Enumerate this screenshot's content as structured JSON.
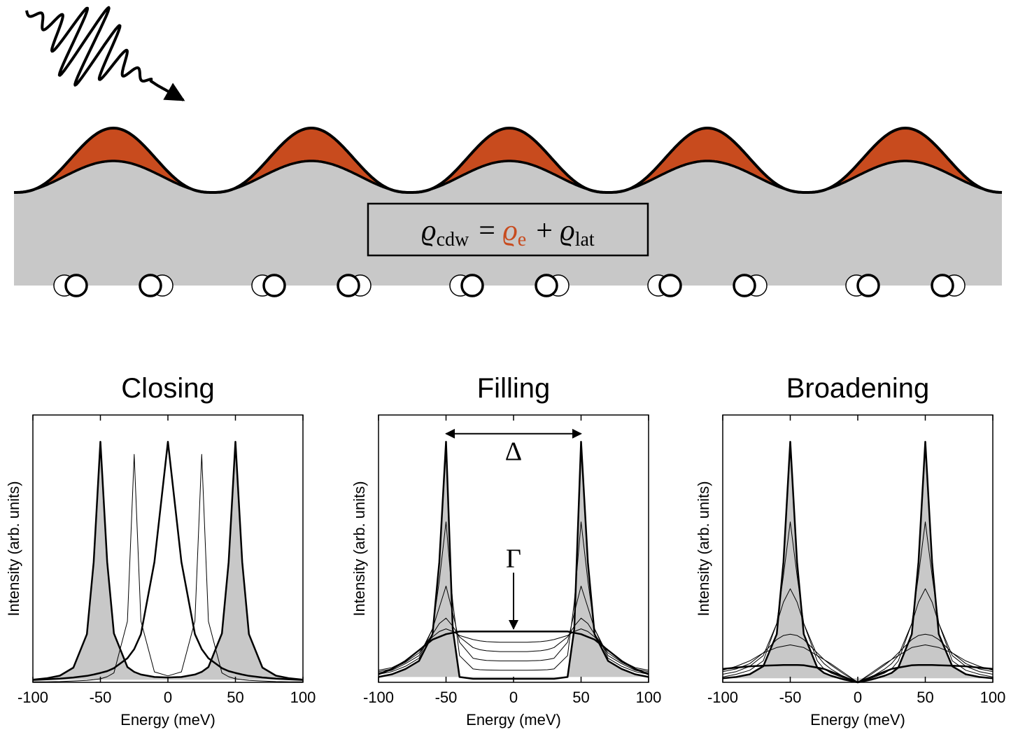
{
  "diagram": {
    "formula": {
      "terms": [
        {
          "symbol": "ϱ",
          "sub": "cdw",
          "color": "#000000"
        },
        {
          "symbol": "ϱ",
          "sub": "e",
          "color": "#c84b1e"
        },
        {
          "symbol": "ϱ",
          "sub": "lat",
          "color": "#000000"
        }
      ],
      "operators": [
        "=",
        "+"
      ]
    }
  },
  "chart_data": [
    {
      "type": "line",
      "title": "Closing",
      "x_label": "Energy (meV)",
      "y_label": "Intensity (arb. units)",
      "x": [
        -100,
        -90,
        -80,
        -70,
        -60,
        -55,
        -50,
        -45,
        -40,
        -30,
        -25,
        -20,
        -10,
        0,
        10,
        20,
        25,
        30,
        40,
        45,
        50,
        55,
        60,
        70,
        80,
        90,
        100
      ],
      "xlim": [
        -100,
        100
      ],
      "ylim": [
        0,
        1
      ],
      "xticks": [
        -100,
        -50,
        0,
        50,
        100
      ],
      "series": [
        {
          "color": "#000000",
          "fill": "#c8c8c8",
          "line_width": 2.5,
          "values": [
            0.01,
            0.015,
            0.025,
            0.055,
            0.18,
            0.45,
            0.9,
            0.45,
            0.183,
            0.057,
            0.039,
            0.029,
            0.02,
            0.018,
            0.02,
            0.029,
            0.039,
            0.057,
            0.183,
            0.45,
            0.9,
            0.45,
            0.18,
            0.055,
            0.025,
            0.015,
            0.01
          ]
        },
        {
          "color": "#000000",
          "line_width": 1,
          "values": [
            0.002,
            0.002,
            0.003,
            0.005,
            0.007,
            0.0096,
            0.013,
            0.021,
            0.035,
            0.228,
            0.853,
            0.229,
            0.039,
            0.024,
            0.039,
            0.229,
            0.853,
            0.228,
            0.035,
            0.021,
            0.013,
            0.0096,
            0.007,
            0.005,
            0.003,
            0.002,
            0.002
          ]
        },
        {
          "color": "#000000",
          "line_width": 2.5,
          "values": [
            0.009,
            0.011,
            0.014,
            0.018,
            0.024,
            0.029,
            0.035,
            0.042,
            0.053,
            0.09,
            0.124,
            0.18,
            0.45,
            0.9,
            0.45,
            0.18,
            0.124,
            0.09,
            0.053,
            0.042,
            0.035,
            0.029,
            0.024,
            0.018,
            0.014,
            0.011,
            0.009
          ]
        }
      ]
    },
    {
      "type": "line",
      "title": "Filling",
      "x_label": "Energy (meV)",
      "y_label": "Intensity (arb. units)",
      "x": [
        -100,
        -90,
        -80,
        -70,
        -60,
        -55,
        -50,
        -45,
        -40,
        -30,
        -25,
        -20,
        -10,
        0,
        10,
        20,
        25,
        30,
        40,
        45,
        50,
        55,
        60,
        70,
        80,
        90,
        100
      ],
      "xlim": [
        -100,
        100
      ],
      "ylim": [
        0,
        1
      ],
      "xticks": [
        -100,
        -50,
        0,
        50,
        100
      ],
      "annotations": [
        {
          "text": "Δ"
        },
        {
          "text": "Γ"
        }
      ],
      "series": [
        {
          "color": "#000000",
          "fill": "#c8c8c8",
          "line_width": 2.5,
          "values": [
            0.02,
            0.03,
            0.05,
            0.08,
            0.18,
            0.45,
            0.9,
            0.2,
            0.02,
            0.013,
            0.013,
            0.013,
            0.013,
            0.013,
            0.013,
            0.013,
            0.013,
            0.013,
            0.02,
            0.2,
            0.9,
            0.45,
            0.18,
            0.08,
            0.05,
            0.03,
            0.02
          ]
        },
        {
          "color": "#000000",
          "line_width": 1,
          "values": [
            0.03,
            0.04,
            0.06,
            0.09,
            0.2,
            0.38,
            0.6,
            0.3,
            0.1,
            0.05,
            0.047,
            0.046,
            0.045,
            0.045,
            0.045,
            0.046,
            0.047,
            0.05,
            0.1,
            0.3,
            0.6,
            0.38,
            0.2,
            0.09,
            0.06,
            0.04,
            0.03
          ]
        },
        {
          "color": "#000000",
          "line_width": 1,
          "values": [
            0.035,
            0.045,
            0.07,
            0.1,
            0.2,
            0.28,
            0.36,
            0.26,
            0.15,
            0.09,
            0.085,
            0.082,
            0.08,
            0.08,
            0.08,
            0.082,
            0.085,
            0.09,
            0.15,
            0.26,
            0.36,
            0.28,
            0.2,
            0.1,
            0.07,
            0.045,
            0.035
          ]
        },
        {
          "color": "#000000",
          "line_width": 1,
          "values": [
            0.04,
            0.05,
            0.075,
            0.11,
            0.18,
            0.22,
            0.24,
            0.21,
            0.17,
            0.13,
            0.122,
            0.118,
            0.115,
            0.115,
            0.115,
            0.118,
            0.122,
            0.13,
            0.17,
            0.21,
            0.24,
            0.22,
            0.18,
            0.11,
            0.075,
            0.05,
            0.04
          ]
        },
        {
          "color": "#000000",
          "line_width": 1,
          "values": [
            0.045,
            0.055,
            0.08,
            0.12,
            0.17,
            0.19,
            0.2,
            0.19,
            0.175,
            0.16,
            0.155,
            0.152,
            0.15,
            0.15,
            0.15,
            0.152,
            0.155,
            0.16,
            0.175,
            0.19,
            0.2,
            0.19,
            0.17,
            0.12,
            0.08,
            0.055,
            0.045
          ]
        },
        {
          "color": "#000000",
          "line_width": 2.5,
          "values": [
            0.03,
            0.05,
            0.08,
            0.12,
            0.16,
            0.17,
            0.18,
            0.185,
            0.19,
            0.19,
            0.19,
            0.19,
            0.19,
            0.19,
            0.19,
            0.19,
            0.19,
            0.19,
            0.19,
            0.185,
            0.18,
            0.17,
            0.16,
            0.12,
            0.08,
            0.05,
            0.03
          ]
        }
      ]
    },
    {
      "type": "line",
      "title": "Broadening",
      "x_label": "Energy (meV)",
      "y_label": "Intensity (arb. units)",
      "x": [
        -100,
        -90,
        -80,
        -70,
        -60,
        -55,
        -50,
        -45,
        -40,
        -30,
        -25,
        -20,
        -10,
        0,
        10,
        20,
        25,
        30,
        40,
        45,
        50,
        55,
        60,
        70,
        80,
        90,
        100
      ],
      "xlim": [
        -100,
        100
      ],
      "ylim": [
        0,
        1
      ],
      "xticks": [
        -100,
        -50,
        0,
        50,
        100
      ],
      "series": [
        {
          "color": "#000000",
          "fill": "#c8c8c8",
          "line_width": 2.5,
          "values": [
            0.015,
            0.02,
            0.03,
            0.06,
            0.18,
            0.45,
            0.9,
            0.45,
            0.18,
            0.055,
            0.035,
            0.025,
            0.01,
            0,
            0.01,
            0.025,
            0.035,
            0.055,
            0.18,
            0.45,
            0.9,
            0.45,
            0.18,
            0.06,
            0.03,
            0.02,
            0.015
          ]
        },
        {
          "color": "#000000",
          "line_width": 1,
          "values": [
            0.02,
            0.03,
            0.045,
            0.08,
            0.22,
            0.4,
            0.6,
            0.4,
            0.22,
            0.08,
            0.05,
            0.035,
            0.015,
            0,
            0.015,
            0.035,
            0.05,
            0.08,
            0.22,
            0.4,
            0.6,
            0.4,
            0.22,
            0.08,
            0.045,
            0.03,
            0.02
          ]
        },
        {
          "color": "#000000",
          "line_width": 1,
          "values": [
            0.03,
            0.04,
            0.06,
            0.1,
            0.22,
            0.3,
            0.35,
            0.3,
            0.22,
            0.1,
            0.07,
            0.05,
            0.02,
            0,
            0.02,
            0.05,
            0.07,
            0.1,
            0.22,
            0.3,
            0.35,
            0.3,
            0.22,
            0.1,
            0.06,
            0.04,
            0.03
          ]
        },
        {
          "color": "#000000",
          "line_width": 1,
          "values": [
            0.04,
            0.05,
            0.07,
            0.11,
            0.16,
            0.175,
            0.18,
            0.175,
            0.16,
            0.11,
            0.085,
            0.065,
            0.03,
            0,
            0.03,
            0.065,
            0.085,
            0.11,
            0.16,
            0.175,
            0.18,
            0.175,
            0.16,
            0.11,
            0.07,
            0.05,
            0.04
          ]
        },
        {
          "color": "#000000",
          "line_width": 1,
          "values": [
            0.045,
            0.06,
            0.08,
            0.11,
            0.13,
            0.135,
            0.14,
            0.135,
            0.13,
            0.1,
            0.085,
            0.07,
            0.035,
            0,
            0.035,
            0.07,
            0.085,
            0.1,
            0.13,
            0.135,
            0.14,
            0.135,
            0.13,
            0.11,
            0.08,
            0.06,
            0.045
          ]
        },
        {
          "color": "#000000",
          "line_width": 2.5,
          "values": [
            0.05,
            0.055,
            0.06,
            0.062,
            0.064,
            0.065,
            0.065,
            0.065,
            0.064,
            0.055,
            0.05,
            0.04,
            0.02,
            0,
            0.02,
            0.04,
            0.05,
            0.055,
            0.064,
            0.065,
            0.065,
            0.065,
            0.064,
            0.062,
            0.06,
            0.055,
            0.05
          ]
        }
      ]
    }
  ]
}
